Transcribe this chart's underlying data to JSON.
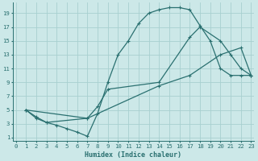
{
  "xlabel": "Humidex (Indice chaleur)",
  "bg_color": "#cce8e8",
  "grid_color": "#a8d0d0",
  "line_color": "#2a7070",
  "line1_x": [
    1,
    2,
    3,
    4,
    5,
    6,
    7,
    8,
    9,
    10,
    11,
    12,
    13,
    14,
    15,
    16,
    17,
    18,
    19,
    20,
    21,
    22,
    23
  ],
  "line1_y": [
    5,
    4,
    3.2,
    2.8,
    2.3,
    1.8,
    1.2,
    4.5,
    9,
    13,
    15,
    17.5,
    19,
    19.5,
    19.8,
    19.8,
    19.5,
    17.2,
    15,
    11,
    10,
    10,
    10
  ],
  "line2_x": [
    1,
    2,
    3,
    7,
    8,
    9,
    14,
    17,
    18,
    20,
    21,
    22,
    23
  ],
  "line2_y": [
    5,
    3.8,
    3.2,
    3.8,
    5.5,
    8,
    9,
    15.5,
    17,
    15,
    13,
    11,
    10
  ],
  "line3_x": [
    1,
    7,
    14,
    17,
    20,
    22,
    23
  ],
  "line3_y": [
    5,
    3.8,
    8.5,
    10,
    13,
    14,
    10
  ],
  "xlim": [
    -0.3,
    23.3
  ],
  "ylim": [
    0.5,
    20.5
  ],
  "xticks": [
    0,
    1,
    2,
    3,
    4,
    5,
    6,
    7,
    8,
    9,
    10,
    11,
    12,
    13,
    14,
    15,
    16,
    17,
    18,
    19,
    20,
    21,
    22,
    23
  ],
  "yticks": [
    1,
    3,
    5,
    7,
    9,
    11,
    13,
    15,
    17,
    19
  ]
}
